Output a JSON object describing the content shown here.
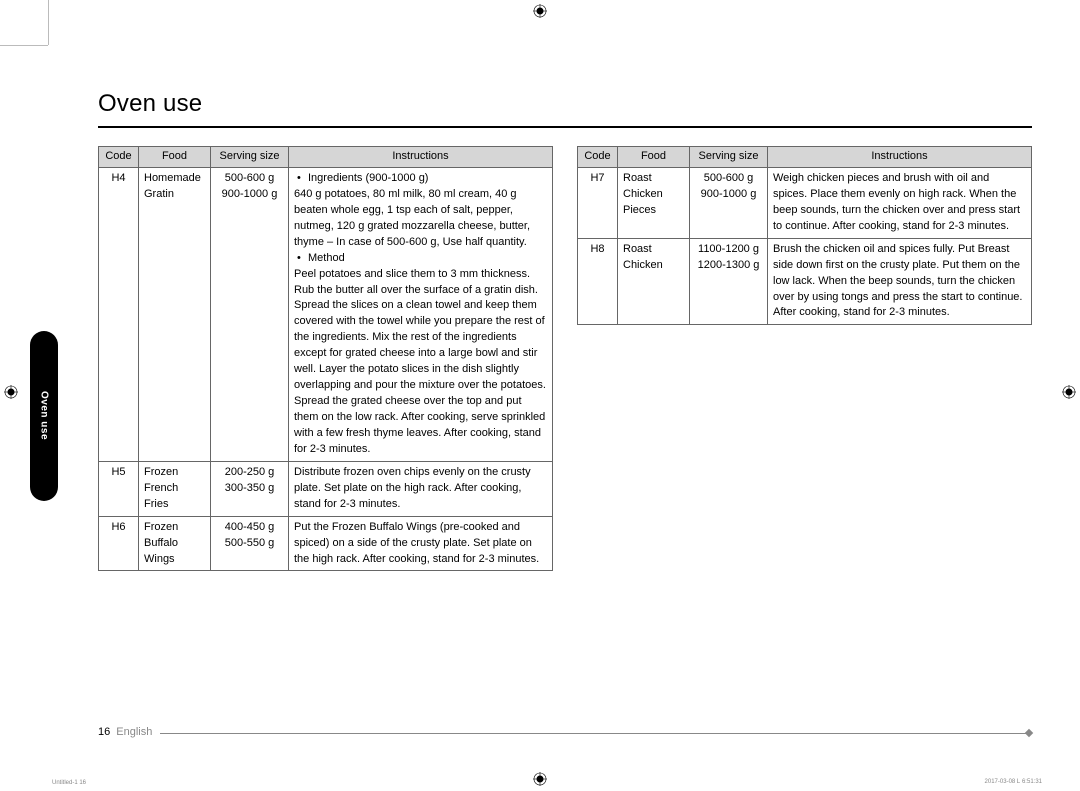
{
  "title": "Oven use",
  "tab_label": "Oven use",
  "headers": {
    "code": "Code",
    "food": "Food",
    "serving": "Serving size",
    "instr": "Instructions"
  },
  "left_table": [
    {
      "code": "H4",
      "food": "Homemade Gratin",
      "serving": "500-600 g\n900-1000 g",
      "instr_bullets": [
        "Ingredients (900-1000 g)"
      ],
      "instr_after_b1": "640 g potatoes, 80 ml milk, 80 ml cream, 40 g beaten whole egg, 1 tsp each of salt, pepper, nutmeg, 120 g grated mozzarella cheese, butter, thyme – In case of 500-600 g, Use half quantity.",
      "instr_bullets2": [
        "Method"
      ],
      "instr_after_b2": "Peel potatoes and slice them to 3 mm thickness. Rub the butter all over the surface of a gratin dish. Spread the slices on a clean towel and keep them covered with the towel while you prepare the rest of the ingredients. Mix the rest of the ingredients except for grated cheese into a large bowl and stir well. Layer the potato slices in the dish slightly overlapping and pour the mixture over the potatoes. Spread the grated cheese over the top and put them on the low rack. After cooking, serve sprinkled with a few fresh thyme leaves. After cooking, stand for 2-3 minutes."
    },
    {
      "code": "H5",
      "food": "Frozen French Fries",
      "serving": "200-250 g\n300-350 g",
      "instr": "Distribute frozen oven chips evenly on the crusty plate. Set plate on the high rack. After cooking, stand for 2-3 minutes."
    },
    {
      "code": "H6",
      "food": "Frozen Buffalo Wings",
      "serving": "400-450 g\n500-550 g",
      "instr": "Put the Frozen Buffalo Wings (pre-cooked and spiced) on a side of the crusty plate. Set plate on the high rack. After cooking, stand for 2-3 minutes."
    }
  ],
  "right_table": [
    {
      "code": "H7",
      "food": "Roast Chicken Pieces",
      "serving": "500-600 g\n900-1000 g",
      "instr": "Weigh chicken pieces and brush with oil and spices. Place them evenly on high rack. When the beep sounds, turn the chicken over and press start to continue. After cooking, stand for 2-3 minutes."
    },
    {
      "code": "H8",
      "food": "Roast Chicken",
      "serving": "1100-1200 g\n1200-1300 g",
      "instr": "Brush the chicken oil and spices fully. Put Breast side down first on the crusty plate. Put them on the low lack. When the beep sounds, turn the chicken over by using tongs and press the start to continue. After cooking, stand for 2-3 minutes."
    }
  ],
  "footer": {
    "page": "16",
    "lang": "English"
  },
  "meta": {
    "left": "Untitled-1   16",
    "right": "2017-03-08   Ꮮ 6:51:31"
  }
}
